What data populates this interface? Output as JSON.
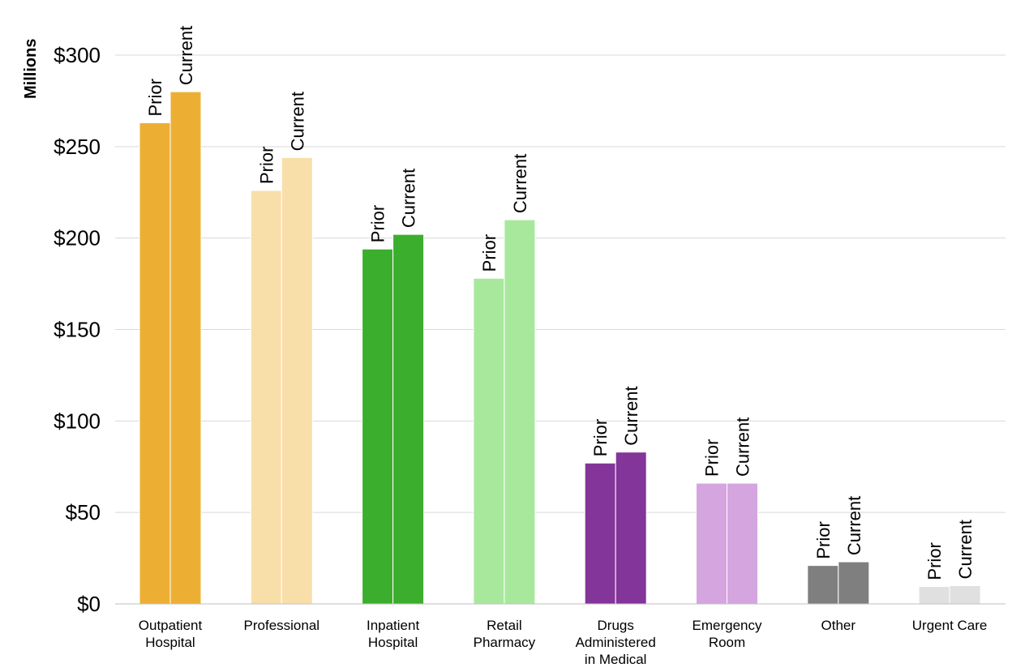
{
  "chart_data": {
    "type": "bar",
    "ylabel": "Millions",
    "ylim": [
      0,
      300
    ],
    "yticks": [
      0,
      50,
      100,
      150,
      200,
      250,
      300
    ],
    "ytick_labels": [
      "$0",
      "$50",
      "$100",
      "$150",
      "$200",
      "$250",
      "$300"
    ],
    "grid": true,
    "categories": [
      [
        "Outpatient",
        "Hospital"
      ],
      [
        "Professional"
      ],
      [
        "Inpatient",
        "Hospital"
      ],
      [
        "Retail",
        "Pharmacy"
      ],
      [
        "Drugs",
        "Administered",
        "in Medical"
      ],
      [
        "Emergency",
        "Room"
      ],
      [
        "Other"
      ],
      [
        "Urgent Care"
      ]
    ],
    "series": [
      {
        "name": "Prior",
        "values": [
          263,
          226,
          194,
          178,
          77,
          66,
          21,
          9.5
        ]
      },
      {
        "name": "Current",
        "values": [
          280,
          244,
          202,
          210,
          83,
          66,
          23,
          10
        ]
      }
    ],
    "colors": [
      "#EDAF33",
      "#F8DFAA",
      "#3CAE2E",
      "#A8E89C",
      "#843599",
      "#D5A5E0",
      "#7F7F7F",
      "#E0E0E0"
    ]
  }
}
